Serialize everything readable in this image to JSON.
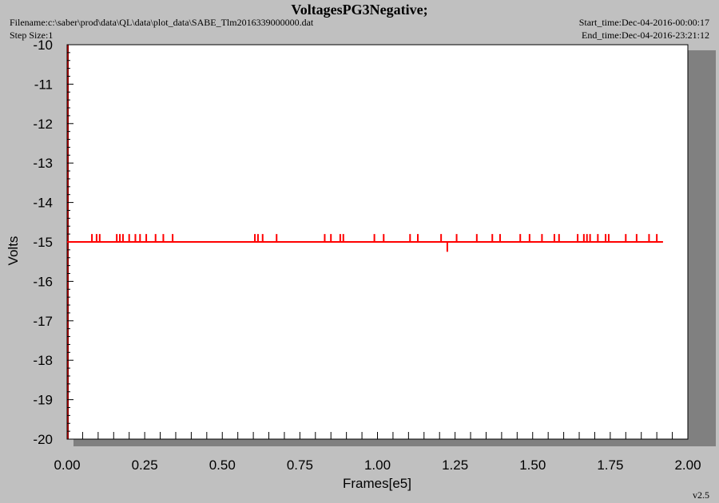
{
  "header": {
    "title": "VoltagesPG3Negative;",
    "filename": "Filename:c:\\saber\\prod\\data\\QL\\data\\plot_data\\SABE_Tlm2016339000000.dat",
    "step_size": "Step Size:1",
    "start_time": "Start_time:Dec-04-2016-00:00:17",
    "end_time": "End_time:Dec-04-2016-23:21:12"
  },
  "version": "v2.5",
  "colors": {
    "series": "#ff0000",
    "axis": "#8b0000",
    "plot_bg": "#ffffff",
    "page_bg": "#c0c0c0"
  },
  "chart_data": {
    "type": "line",
    "title": "VoltagesPG3Negative;",
    "xlabel": "Frames[e5]",
    "ylabel": "Volts",
    "xlim": [
      0,
      2.0
    ],
    "ylim": [
      -20,
      -10
    ],
    "xticks": [
      "0.00",
      "0.25",
      "0.50",
      "0.75",
      "1.00",
      "1.25",
      "1.50",
      "1.75",
      "2.00"
    ],
    "yticks": [
      "-10",
      "-11",
      "-12",
      "-13",
      "-14",
      "-15",
      "-16",
      "-17",
      "-18",
      "-19",
      "-20"
    ],
    "grid": false,
    "series": [
      {
        "baseline": -15.0,
        "x_range": [
          0.0,
          1.92
        ],
        "spikes_up": [
          {
            "x": 0.08,
            "y": -14.8
          },
          {
            "x": 0.095,
            "y": -14.8
          },
          {
            "x": 0.105,
            "y": -14.8
          },
          {
            "x": 0.16,
            "y": -14.8
          },
          {
            "x": 0.17,
            "y": -14.8
          },
          {
            "x": 0.18,
            "y": -14.8
          },
          {
            "x": 0.2,
            "y": -14.8
          },
          {
            "x": 0.22,
            "y": -14.8
          },
          {
            "x": 0.235,
            "y": -14.8
          },
          {
            "x": 0.255,
            "y": -14.8
          },
          {
            "x": 0.285,
            "y": -14.8
          },
          {
            "x": 0.31,
            "y": -14.8
          },
          {
            "x": 0.34,
            "y": -14.8
          },
          {
            "x": 0.605,
            "y": -14.8
          },
          {
            "x": 0.615,
            "y": -14.8
          },
          {
            "x": 0.63,
            "y": -14.8
          },
          {
            "x": 0.675,
            "y": -14.8
          },
          {
            "x": 0.83,
            "y": -14.8
          },
          {
            "x": 0.85,
            "y": -14.8
          },
          {
            "x": 0.88,
            "y": -14.8
          },
          {
            "x": 0.89,
            "y": -14.8
          },
          {
            "x": 0.99,
            "y": -14.8
          },
          {
            "x": 1.02,
            "y": -14.8
          },
          {
            "x": 1.105,
            "y": -14.8
          },
          {
            "x": 1.13,
            "y": -14.8
          },
          {
            "x": 1.205,
            "y": -14.8
          },
          {
            "x": 1.255,
            "y": -14.8
          },
          {
            "x": 1.32,
            "y": -14.8
          },
          {
            "x": 1.37,
            "y": -14.8
          },
          {
            "x": 1.395,
            "y": -14.8
          },
          {
            "x": 1.46,
            "y": -14.8
          },
          {
            "x": 1.49,
            "y": -14.8
          },
          {
            "x": 1.53,
            "y": -14.8
          },
          {
            "x": 1.57,
            "y": -14.8
          },
          {
            "x": 1.585,
            "y": -14.8
          },
          {
            "x": 1.645,
            "y": -14.8
          },
          {
            "x": 1.665,
            "y": -14.8
          },
          {
            "x": 1.675,
            "y": -14.8
          },
          {
            "x": 1.685,
            "y": -14.8
          },
          {
            "x": 1.71,
            "y": -14.8
          },
          {
            "x": 1.735,
            "y": -14.8
          },
          {
            "x": 1.745,
            "y": -14.8
          },
          {
            "x": 1.8,
            "y": -14.8
          },
          {
            "x": 1.835,
            "y": -14.8
          },
          {
            "x": 1.875,
            "y": -14.8
          },
          {
            "x": 1.9,
            "y": -14.8
          }
        ],
        "spikes_down": [
          {
            "x": 1.225,
            "y": -15.25
          }
        ]
      }
    ]
  }
}
